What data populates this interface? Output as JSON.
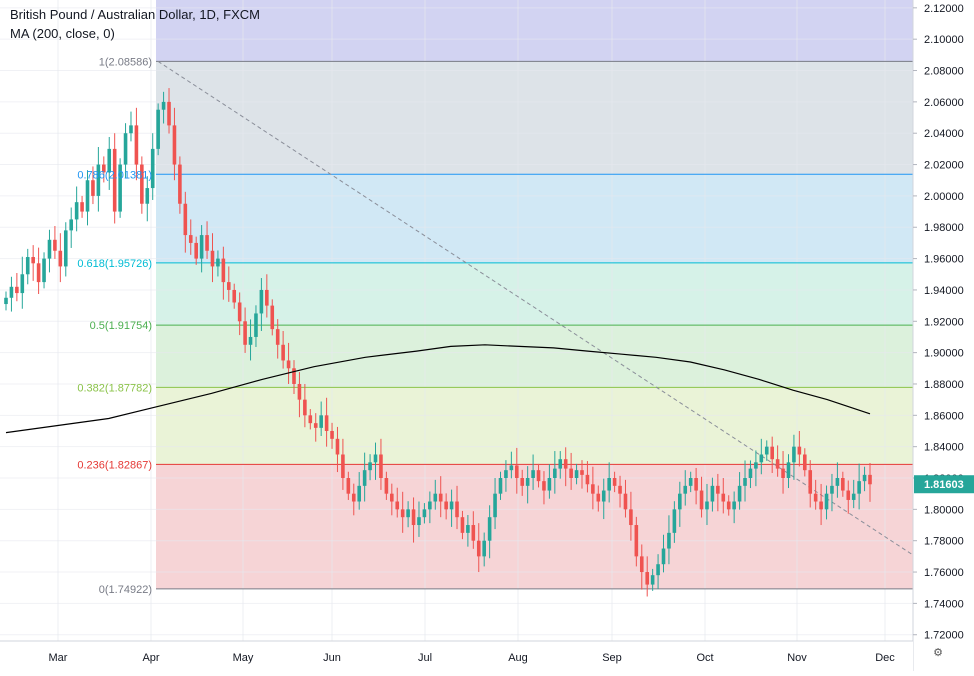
{
  "header": {
    "title": "British Pound / Australian Dollar, 1D, FXCM",
    "indicator": "MA (200, close, 0)"
  },
  "chart_data": {
    "type": "candlestick",
    "symbol": "GBPAUD",
    "x_ticks": [
      "Mar",
      "Apr",
      "May",
      "Jun",
      "Jul",
      "Aug",
      "Sep",
      "Oct",
      "Nov",
      "Dec"
    ],
    "y_ticks": [
      "2.12000",
      "2.10000",
      "2.08000",
      "2.06000",
      "2.04000",
      "2.02000",
      "2.00000",
      "1.98000",
      "1.96000",
      "1.94000",
      "1.92000",
      "1.90000",
      "1.88000",
      "1.86000",
      "1.84000",
      "1.82000",
      "1.80000",
      "1.78000",
      "1.76000",
      "1.74000",
      "1.72000"
    ],
    "ylim": [
      1.716,
      2.125
    ],
    "last_price": "1.81603",
    "last_price_value": 1.81603,
    "fib_levels": [
      {
        "label": "1(2.08586)",
        "value": 2.08586,
        "line_color": "#787b86",
        "fill": null
      },
      {
        "label": "0.786(2.01381)",
        "value": 2.01381,
        "line_color": "#2196f3",
        "fill": "#dde3e8"
      },
      {
        "label": "0.618(1.95726)",
        "value": 1.95726,
        "line_color": "#00bcd4",
        "fill": "#d1e8f5"
      },
      {
        "label": "0.5(1.91754)",
        "value": 1.91754,
        "line_color": "#4caf50",
        "fill": "#d6f2e8"
      },
      {
        "label": "0.382(1.87782)",
        "value": 1.87782,
        "line_color": "#8bc34a",
        "fill": "#dcf1dc"
      },
      {
        "label": "0.236(1.82867)",
        "value": 1.82867,
        "line_color": "#e53935",
        "fill": "#eaf3d7"
      },
      {
        "label": "0(1.74922)",
        "value": 1.74922,
        "line_color": "#787b86",
        "fill": "#f6d4d6"
      }
    ],
    "fib_label_colors": [
      "#787b86",
      "#2196f3",
      "#00bcd4",
      "#4caf50",
      "#8bc34a",
      "#e53935",
      "#787b86"
    ],
    "top_zone_fill": "#d2d3f2",
    "up_color": "#26a69a",
    "down_color": "#ef5350",
    "ma_color": "#000000",
    "ma_points": [
      [
        0,
        1.849
      ],
      [
        60,
        1.858
      ],
      [
        90,
        1.866
      ],
      [
        120,
        1.874
      ],
      [
        150,
        1.883
      ],
      [
        180,
        1.891
      ],
      [
        210,
        1.897
      ],
      [
        240,
        1.901
      ],
      [
        260,
        1.904
      ],
      [
        280,
        1.905
      ],
      [
        300,
        1.904
      ],
      [
        320,
        1.903
      ],
      [
        340,
        1.901
      ],
      [
        360,
        1.899
      ],
      [
        380,
        1.897
      ],
      [
        400,
        1.894
      ],
      [
        420,
        1.889
      ],
      [
        440,
        1.883
      ],
      [
        460,
        1.876
      ],
      [
        480,
        1.87
      ],
      [
        505,
        1.861
      ]
    ],
    "closes": [
      1.935,
      1.942,
      1.938,
      1.95,
      1.961,
      1.957,
      1.945,
      1.96,
      1.972,
      1.965,
      1.955,
      1.978,
      1.985,
      1.996,
      1.99,
      2.01,
      2.0,
      2.02,
      2.015,
      2.03,
      1.99,
      2.02,
      2.04,
      2.045,
      2.02,
      1.995,
      2.005,
      2.03,
      2.055,
      2.06,
      2.045,
      2.02,
      1.995,
      1.975,
      1.97,
      1.96,
      1.975,
      1.965,
      1.955,
      1.96,
      1.945,
      1.94,
      1.932,
      1.92,
      1.905,
      1.91,
      1.925,
      1.94,
      1.93,
      1.915,
      1.905,
      1.895,
      1.89,
      1.88,
      1.87,
      1.86,
      1.855,
      1.852,
      1.86,
      1.85,
      1.845,
      1.835,
      1.82,
      1.81,
      1.805,
      1.815,
      1.825,
      1.83,
      1.835,
      1.82,
      1.81,
      1.805,
      1.8,
      1.795,
      1.8,
      1.79,
      1.795,
      1.8,
      1.805,
      1.81,
      1.805,
      1.8,
      1.805,
      1.795,
      1.785,
      1.79,
      1.78,
      1.77,
      1.78,
      1.795,
      1.81,
      1.82,
      1.825,
      1.828,
      1.82,
      1.815,
      1.82,
      1.825,
      1.818,
      1.812,
      1.82,
      1.826,
      1.832,
      1.826,
      1.82,
      1.825,
      1.822,
      1.816,
      1.81,
      1.805,
      1.812,
      1.82,
      1.815,
      1.81,
      1.8,
      1.79,
      1.77,
      1.76,
      1.752,
      1.758,
      1.765,
      1.775,
      1.785,
      1.8,
      1.81,
      1.815,
      1.82,
      1.812,
      1.8,
      1.805,
      1.815,
      1.81,
      1.805,
      1.8,
      1.805,
      1.815,
      1.82,
      1.826,
      1.83,
      1.835,
      1.84,
      1.832,
      1.826,
      1.82,
      1.83,
      1.84,
      1.835,
      1.825,
      1.81,
      1.805,
      1.8,
      1.81,
      1.815,
      1.82,
      1.812,
      1.806,
      1.81,
      1.818,
      1.822,
      1.816
    ]
  }
}
